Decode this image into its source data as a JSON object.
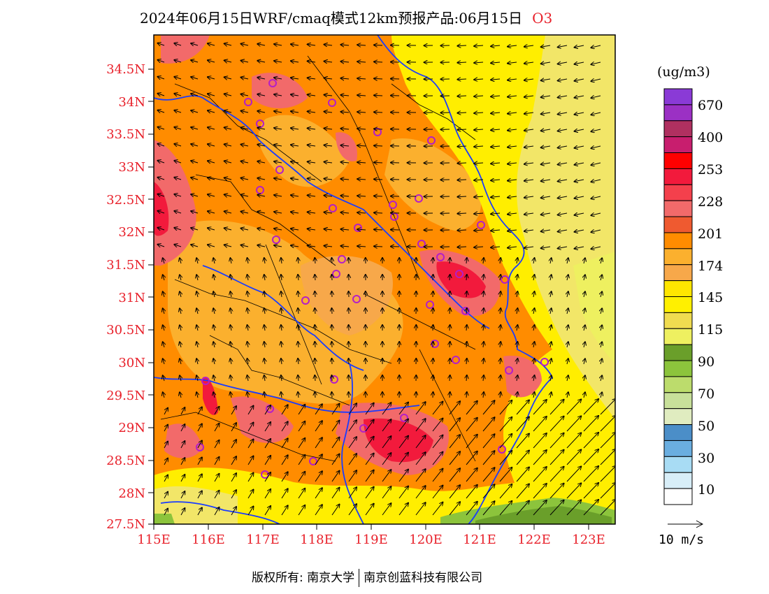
{
  "title": {
    "text": "2024年06月15日WRF/cmaq模式12km预报产品:06月15日",
    "species": "O3"
  },
  "axes": {
    "lat_labels": [
      "34.5N",
      "34N",
      "33.5N",
      "33N",
      "32.5N",
      "32N",
      "31.5N",
      "31N",
      "30.5N",
      "30N",
      "29.5N",
      "29N",
      "28.5N",
      "28N",
      "27.5N"
    ],
    "lon_labels": [
      "115E",
      "116E",
      "117E",
      "118E",
      "119E",
      "120E",
      "121E",
      "122E",
      "123E"
    ],
    "lat_range": [
      27.5,
      35.0
    ],
    "lon_range": [
      115.0,
      123.5
    ]
  },
  "legend": {
    "unit": "(ug/m3)",
    "labels": [
      "670",
      "400",
      "253",
      "228",
      "201",
      "174",
      "145",
      "115",
      "90",
      "70",
      "50",
      "30",
      "10"
    ],
    "colors": [
      "#8a3ad6",
      "#9b30c4",
      "#b03060",
      "#c81e6e",
      "#ff0000",
      "#f21a3c",
      "#f4404c",
      "#f26a6a",
      "#ef5a30",
      "#ff8c00",
      "#fbb02e",
      "#f7a84a",
      "#ffe600",
      "#fff000",
      "#f0dc50",
      "#eef060",
      "#6a9f2a",
      "#8cc43c",
      "#bcdc6c",
      "#c8e09a",
      "#e0ecc0",
      "#4b8ec8",
      "#6aaee0",
      "#a8dcf4",
      "#d8eef8",
      "#ffffff"
    ]
  },
  "wind_scale": {
    "label": "10 m/s"
  },
  "copyright": {
    "left": "版权所有: 南京大学",
    "right": "南京创蓝科技有限公司"
  },
  "map_colors": {
    "orange": "#ff8c00",
    "light_orange": "#fbb02e",
    "pink": "#f26a6a",
    "red": "#f21a3c",
    "yellow": "#ffee00",
    "pale_yellow": "#f2e668",
    "green": "#6a9f2a",
    "boundary": "#1a3cff"
  }
}
